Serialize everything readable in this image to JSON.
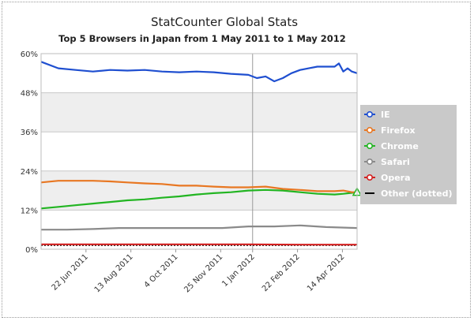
{
  "chart_data": {
    "type": "line",
    "title": "StatCounter Global Stats",
    "subtitle": "Top 5 Browsers in Japan from 1 May 2011  to  1 May 2012",
    "y_ticks": [
      "0%",
      "12%",
      "24%",
      "36%",
      "48%",
      "60%"
    ],
    "ylim": [
      0,
      60
    ],
    "x_ticks": [
      {
        "label": "22 Jun 2011",
        "day": 52
      },
      {
        "label": "13 Aug 2011",
        "day": 104
      },
      {
        "label": "4 Oct 2011",
        "day": 156
      },
      {
        "label": "25 Nov 2011",
        "day": 208
      },
      {
        "label": "1 Jan 2012",
        "day": 245
      },
      {
        "label": "22 Feb 2012",
        "day": 297
      },
      {
        "label": "14 Apr 2012",
        "day": 349
      }
    ],
    "x_range_days": [
      0,
      366
    ],
    "grid": true,
    "legend_position": "right",
    "series": [
      {
        "name": "IE",
        "color": "#1f4fd0",
        "x": [
          0,
          20,
          40,
          60,
          80,
          100,
          120,
          140,
          160,
          180,
          200,
          220,
          240,
          250,
          260,
          270,
          280,
          290,
          300,
          310,
          320,
          330,
          340,
          345,
          350,
          355,
          360,
          366
        ],
        "y": [
          57.5,
          55.5,
          55,
          54.5,
          55,
          54.8,
          55,
          54.5,
          54.3,
          54.5,
          54.3,
          53.8,
          53.5,
          52.5,
          53,
          51.5,
          52.5,
          54,
          55,
          55.5,
          56,
          56,
          56,
          57,
          54.5,
          55.5,
          54.5,
          54
        ]
      },
      {
        "name": "Firefox",
        "color": "#e87722",
        "x": [
          0,
          20,
          40,
          60,
          80,
          100,
          120,
          140,
          160,
          180,
          200,
          220,
          240,
          260,
          280,
          300,
          320,
          340,
          350,
          360,
          366
        ],
        "y": [
          20.5,
          21,
          21,
          21,
          20.8,
          20.5,
          20.2,
          20,
          19.5,
          19.5,
          19.2,
          19,
          19,
          19.2,
          18.5,
          18.2,
          17.8,
          17.8,
          18,
          17.5,
          17.5
        ]
      },
      {
        "name": "Chrome",
        "color": "#22b522",
        "x": [
          0,
          20,
          40,
          60,
          80,
          100,
          120,
          140,
          160,
          180,
          200,
          220,
          240,
          260,
          280,
          300,
          320,
          340,
          350,
          360,
          366
        ],
        "y": [
          12.5,
          13,
          13.5,
          14,
          14.5,
          15,
          15.3,
          15.8,
          16.2,
          16.8,
          17.2,
          17.5,
          18,
          18.2,
          18,
          17.5,
          17,
          16.8,
          17,
          17.3,
          17.5
        ]
      },
      {
        "name": "Safari",
        "color": "#8a8a8a",
        "x": [
          0,
          30,
          60,
          90,
          120,
          150,
          180,
          210,
          240,
          270,
          300,
          330,
          366
        ],
        "y": [
          6,
          6,
          6.2,
          6.5,
          6.5,
          6.5,
          6.5,
          6.5,
          7,
          7,
          7.3,
          6.8,
          6.5
        ]
      },
      {
        "name": "Opera",
        "color": "#d42020",
        "x": [
          0,
          60,
          120,
          180,
          240,
          300,
          366
        ],
        "y": [
          1.5,
          1.5,
          1.5,
          1.5,
          1.5,
          1.4,
          1.4
        ]
      },
      {
        "name": "Other (dotted)",
        "color": "#000000",
        "x": [
          0,
          60,
          120,
          180,
          240,
          300,
          366
        ],
        "y": [
          1.2,
          1.2,
          1.2,
          1.2,
          1.2,
          1.2,
          1.2
        ]
      }
    ]
  }
}
